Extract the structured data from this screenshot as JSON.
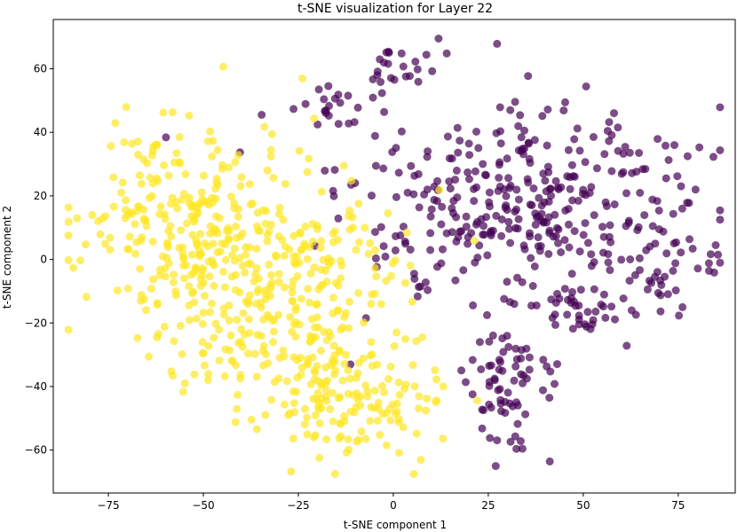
{
  "chart_data": {
    "type": "scatter",
    "title": "t-SNE visualization for Layer 22",
    "xlabel": "t-SNE component 1",
    "ylabel": "t-SNE component 2",
    "xlim": [
      -89.5,
      90
    ],
    "ylim": [
      -73.5,
      75.5
    ],
    "xticks": [
      -75,
      -50,
      -25,
      0,
      25,
      50,
      75
    ],
    "yticks": [
      -60,
      -40,
      -20,
      0,
      20,
      40,
      60
    ],
    "xtick_labels": [
      "−75",
      "−50",
      "−25",
      "0",
      "25",
      "50",
      "75"
    ],
    "ytick_labels": [
      "−60",
      "−40",
      "−20",
      "0",
      "20",
      "40",
      "60"
    ],
    "grid": false,
    "legend": "none",
    "point_alpha": 0.7,
    "series": [
      {
        "color": "#440154",
        "clusters": [
          {
            "cx": 36,
            "cy": 15,
            "sx": 24,
            "sy": 16,
            "n": 380
          },
          {
            "cx": 2,
            "cy": 60,
            "sx": 4,
            "sy": 5,
            "n": 22
          },
          {
            "cx": -16,
            "cy": 47,
            "sx": 4,
            "sy": 4,
            "n": 18
          },
          {
            "cx": 31,
            "cy": -40,
            "sx": 6,
            "sy": 10,
            "n": 70
          },
          {
            "cx": 48,
            "cy": -16,
            "sx": 5,
            "sy": 6,
            "n": 30
          },
          {
            "cx": 70,
            "cy": -10,
            "sx": 5,
            "sy": 5,
            "n": 15
          }
        ]
      },
      {
        "color": "#fde725",
        "clusters": [
          {
            "cx": -55,
            "cy": 10,
            "sx": 14,
            "sy": 16,
            "n": 260
          },
          {
            "cx": -25,
            "cy": -12,
            "sx": 15,
            "sy": 20,
            "n": 300
          },
          {
            "cx": -12,
            "cy": -45,
            "sx": 12,
            "sy": 9,
            "n": 110
          }
        ]
      }
    ]
  }
}
